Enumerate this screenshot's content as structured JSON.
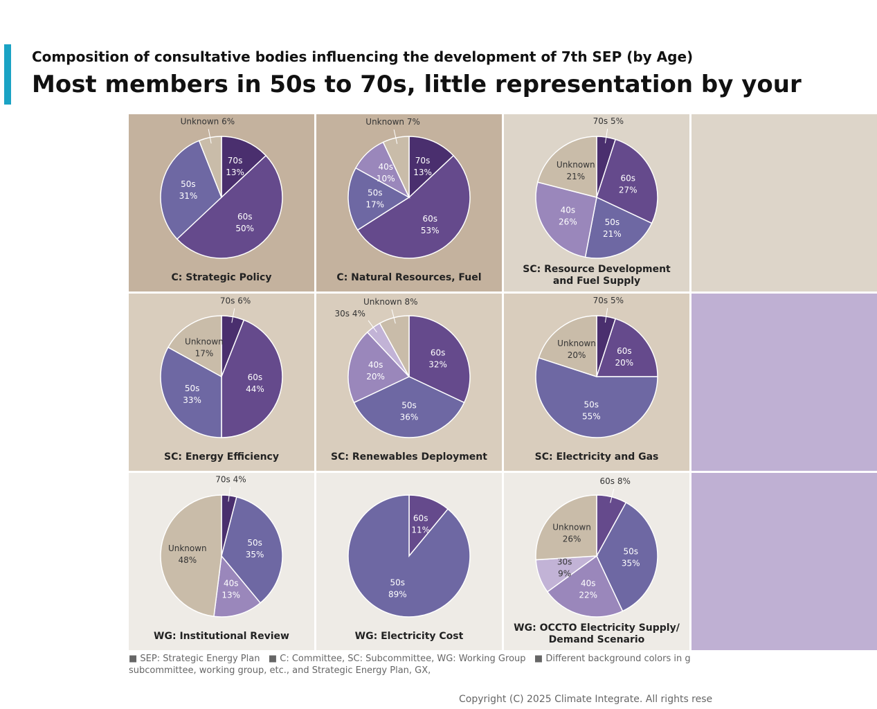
{
  "header": {
    "subtitle": "Composition of consultative bodies influencing the development of 7th SEP (by Age)",
    "title": "Most members in 50s to 70s, little representation by your"
  },
  "chart_data": [
    {
      "type": "pie",
      "title": "C: Strategic Policy",
      "background": "#c4b29e",
      "categories": [
        "70s",
        "60s",
        "50s",
        "Unknown"
      ],
      "values": [
        13,
        50,
        31,
        6
      ],
      "value_labels": [
        "13%",
        "50%",
        "31%",
        "6%"
      ],
      "colors": [
        "#4a2f6e",
        "#654a8c",
        "#6e68a3",
        "#c9bca9"
      ]
    },
    {
      "type": "pie",
      "title": "C: Natural Resources, Fuel",
      "background": "#c4b29e",
      "categories": [
        "70s",
        "60s",
        "50s",
        "40s",
        "Unknown"
      ],
      "values": [
        13,
        53,
        17,
        10,
        7
      ],
      "value_labels": [
        "13%",
        "53%",
        "17%",
        "10%",
        "7%"
      ],
      "colors": [
        "#4a2f6e",
        "#654a8c",
        "#6e68a3",
        "#9a87bb",
        "#c9bca9"
      ]
    },
    {
      "type": "pie",
      "title": "SC: Resource Development\nand Fuel Supply",
      "background": "#ddd5c9",
      "categories": [
        "70s",
        "60s",
        "50s",
        "40s",
        "Unknown"
      ],
      "values": [
        5,
        27,
        21,
        26,
        21
      ],
      "value_labels": [
        "5%",
        "27%",
        "21%",
        "26%",
        "21%"
      ],
      "colors": [
        "#4a2f6e",
        "#654a8c",
        "#6e68a3",
        "#9a87bb",
        "#c9bca9"
      ]
    },
    {
      "type": "pie",
      "title": "SC: Energy Efficiency",
      "background": "#d9cdbd",
      "categories": [
        "70s",
        "60s",
        "50s",
        "Unknown"
      ],
      "values": [
        6,
        44,
        33,
        17
      ],
      "value_labels": [
        "6%",
        "44%",
        "33%",
        "17%"
      ],
      "colors": [
        "#4a2f6e",
        "#654a8c",
        "#6e68a3",
        "#c9bca9"
      ]
    },
    {
      "type": "pie",
      "title": "SC: Renewables Deployment",
      "background": "#d9cdbd",
      "categories": [
        "60s",
        "50s",
        "40s",
        "30s",
        "Unknown"
      ],
      "values": [
        32,
        36,
        20,
        4,
        8
      ],
      "value_labels": [
        "32%",
        "36%",
        "20%",
        "4%",
        "8%"
      ],
      "colors": [
        "#654a8c",
        "#6e68a3",
        "#9a87bb",
        "#c2b3d6",
        "#c9bca9"
      ]
    },
    {
      "type": "pie",
      "title": "SC: Electricity and Gas",
      "background": "#d9cdbd",
      "categories": [
        "70s",
        "60s",
        "50s",
        "Unknown"
      ],
      "values": [
        5,
        20,
        55,
        20
      ],
      "value_labels": [
        "5%",
        "20%",
        "55%",
        "20%"
      ],
      "colors": [
        "#4a2f6e",
        "#654a8c",
        "#6e68a3",
        "#c9bca9"
      ]
    },
    {
      "type": "pie",
      "title": "WG: Institutional Review",
      "background": "#eeebe6",
      "categories": [
        "70s",
        "50s",
        "40s",
        "Unknown"
      ],
      "values": [
        4,
        35,
        13,
        48
      ],
      "value_labels": [
        "4%",
        "35%",
        "13%",
        "48%"
      ],
      "colors": [
        "#4a2f6e",
        "#6e68a3",
        "#9a87bb",
        "#c9bca9"
      ]
    },
    {
      "type": "pie",
      "title": "WG: Electricity Cost",
      "background": "#eeebe6",
      "categories": [
        "60s",
        "50s"
      ],
      "values": [
        11,
        89
      ],
      "value_labels": [
        "11%",
        "89%"
      ],
      "colors": [
        "#654a8c",
        "#6e68a3"
      ]
    },
    {
      "type": "pie",
      "title": "WG: OCCTO Electricity Supply/\nDemand Scenario",
      "background": "#eeebe6",
      "categories": [
        "60s",
        "50s",
        "40s",
        "30s",
        "Unknown"
      ],
      "values": [
        8,
        35,
        22,
        9,
        26
      ],
      "value_labels": [
        "8%",
        "35%",
        "22%",
        "9%",
        "26%"
      ],
      "colors": [
        "#654a8c",
        "#6e68a3",
        "#9a87bb",
        "#c2b3d6",
        "#c9bca9"
      ]
    }
  ],
  "footnote": [
    "■ SEP: Strategic Energy Plan   ■ C: Committee, SC: Subcommittee, WG: Working Group   ■ Different background colors in g",
    "subcommittee, working group, etc., and Strategic Energy Plan, GX,"
  ],
  "copyright": "Copyright (C) 2025 Climate Integrate. All rights rese"
}
